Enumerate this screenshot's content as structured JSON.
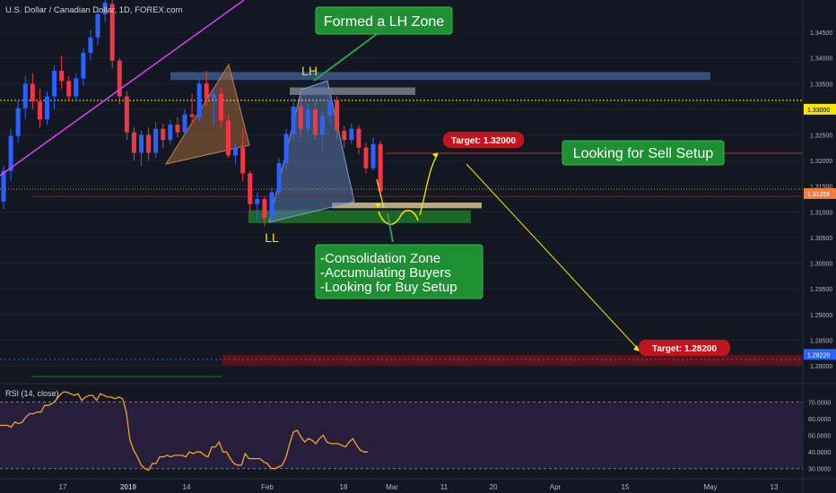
{
  "header": {
    "symbol_title": "U.S. Dollar / Canadian Dollar, 1D, FOREX.com"
  },
  "chart_data": {
    "type": "candlestick",
    "price_axis": {
      "range": [
        1.2765,
        1.3513
      ],
      "ticks": [
        "1.34500",
        "1.34000",
        "1.33500",
        "1.33000",
        "1.32500",
        "1.32000",
        "1.31500",
        "1.31000",
        "1.30500",
        "1.30000",
        "1.29500",
        "1.29000",
        "1.28500",
        "1.28000"
      ]
    },
    "price_labels": [
      {
        "id": "yellow-dotted-level",
        "value": 1.33,
        "text": "1.33000",
        "color": "#f7e600",
        "text_color": "#000000"
      },
      {
        "id": "last-price",
        "value": 1.31356,
        "text": "1.31356",
        "color": "#f57c3d",
        "text_color": "#ffffff"
      },
      {
        "id": "blue-dotted-level",
        "value": 1.2822,
        "text": "1.28220",
        "color": "#2962ff",
        "text_color": "#ffffff"
      }
    ],
    "time_axis": {
      "ticks": [
        "17",
        "2019",
        "14",
        "Feb",
        "18",
        "Mar",
        "11",
        "20",
        "Apr",
        "15",
        "May",
        "13"
      ],
      "bold_ticks": [
        "2019"
      ]
    },
    "colors": {
      "up": "#2962ff",
      "down": "#f23645",
      "background": "#131722",
      "grid": "#1e2230"
    },
    "candles": [
      {
        "o": 1.312,
        "h": 1.319,
        "l": 1.3105,
        "c": 1.318
      },
      {
        "o": 1.318,
        "h": 1.3262,
        "l": 1.316,
        "c": 1.3248
      },
      {
        "o": 1.3248,
        "h": 1.3318,
        "l": 1.3235,
        "c": 1.3302
      },
      {
        "o": 1.3302,
        "h": 1.3365,
        "l": 1.328,
        "c": 1.335
      },
      {
        "o": 1.335,
        "h": 1.337,
        "l": 1.33,
        "c": 1.3315
      },
      {
        "o": 1.3315,
        "h": 1.334,
        "l": 1.3265,
        "c": 1.328
      },
      {
        "o": 1.328,
        "h": 1.3335,
        "l": 1.327,
        "c": 1.3325
      },
      {
        "o": 1.3325,
        "h": 1.3385,
        "l": 1.33,
        "c": 1.3375
      },
      {
        "o": 1.3375,
        "h": 1.3405,
        "l": 1.334,
        "c": 1.3355
      },
      {
        "o": 1.3355,
        "h": 1.3365,
        "l": 1.3318,
        "c": 1.3325
      },
      {
        "o": 1.3325,
        "h": 1.337,
        "l": 1.3315,
        "c": 1.336
      },
      {
        "o": 1.336,
        "h": 1.342,
        "l": 1.3345,
        "c": 1.341
      },
      {
        "o": 1.341,
        "h": 1.3455,
        "l": 1.3395,
        "c": 1.344
      },
      {
        "o": 1.344,
        "h": 1.35,
        "l": 1.3425,
        "c": 1.3485
      },
      {
        "o": 1.3485,
        "h": 1.352,
        "l": 1.347,
        "c": 1.3508
      },
      {
        "o": 1.3505,
        "h": 1.352,
        "l": 1.338,
        "c": 1.3395
      },
      {
        "o": 1.3395,
        "h": 1.34,
        "l": 1.331,
        "c": 1.3325
      },
      {
        "o": 1.3325,
        "h": 1.3335,
        "l": 1.324,
        "c": 1.3255
      },
      {
        "o": 1.3255,
        "h": 1.3265,
        "l": 1.32,
        "c": 1.3215
      },
      {
        "o": 1.3215,
        "h": 1.3258,
        "l": 1.319,
        "c": 1.325
      },
      {
        "o": 1.325,
        "h": 1.3265,
        "l": 1.32,
        "c": 1.3215
      },
      {
        "o": 1.3215,
        "h": 1.3275,
        "l": 1.3205,
        "c": 1.3262
      },
      {
        "o": 1.3262,
        "h": 1.3272,
        "l": 1.3225,
        "c": 1.324
      },
      {
        "o": 1.324,
        "h": 1.328,
        "l": 1.3232,
        "c": 1.327
      },
      {
        "o": 1.327,
        "h": 1.3285,
        "l": 1.3245,
        "c": 1.3255
      },
      {
        "o": 1.3255,
        "h": 1.33,
        "l": 1.325,
        "c": 1.329
      },
      {
        "o": 1.329,
        "h": 1.333,
        "l": 1.327,
        "c": 1.3285
      },
      {
        "o": 1.3285,
        "h": 1.336,
        "l": 1.3275,
        "c": 1.335
      },
      {
        "o": 1.335,
        "h": 1.3375,
        "l": 1.3305,
        "c": 1.332
      },
      {
        "o": 1.332,
        "h": 1.334,
        "l": 1.327,
        "c": 1.333
      },
      {
        "o": 1.333,
        "h": 1.3342,
        "l": 1.3265,
        "c": 1.3278
      },
      {
        "o": 1.3278,
        "h": 1.329,
        "l": 1.3205,
        "c": 1.321
      },
      {
        "o": 1.321,
        "h": 1.3232,
        "l": 1.3192,
        "c": 1.3225
      },
      {
        "o": 1.3225,
        "h": 1.3262,
        "l": 1.316,
        "c": 1.3175
      },
      {
        "o": 1.3175,
        "h": 1.318,
        "l": 1.3102,
        "c": 1.3115
      },
      {
        "o": 1.3115,
        "h": 1.3138,
        "l": 1.3082,
        "c": 1.3125
      },
      {
        "o": 1.3125,
        "h": 1.313,
        "l": 1.3072,
        "c": 1.3088
      },
      {
        "o": 1.3088,
        "h": 1.3148,
        "l": 1.3082,
        "c": 1.3138
      },
      {
        "o": 1.3138,
        "h": 1.3205,
        "l": 1.313,
        "c": 1.3195
      },
      {
        "o": 1.3195,
        "h": 1.3262,
        "l": 1.318,
        "c": 1.3252
      },
      {
        "o": 1.3252,
        "h": 1.3322,
        "l": 1.324,
        "c": 1.3305
      },
      {
        "o": 1.3305,
        "h": 1.3325,
        "l": 1.3245,
        "c": 1.3262
      },
      {
        "o": 1.3262,
        "h": 1.3312,
        "l": 1.325,
        "c": 1.33
      },
      {
        "o": 1.33,
        "h": 1.3315,
        "l": 1.324,
        "c": 1.325
      },
      {
        "o": 1.325,
        "h": 1.3298,
        "l": 1.322,
        "c": 1.3288
      },
      {
        "o": 1.3288,
        "h": 1.3338,
        "l": 1.327,
        "c": 1.3318
      },
      {
        "o": 1.3318,
        "h": 1.3325,
        "l": 1.3242,
        "c": 1.3258
      },
      {
        "o": 1.3258,
        "h": 1.3268,
        "l": 1.3225,
        "c": 1.324
      },
      {
        "o": 1.324,
        "h": 1.3272,
        "l": 1.3232,
        "c": 1.3262
      },
      {
        "o": 1.3262,
        "h": 1.327,
        "l": 1.3212,
        "c": 1.3225
      },
      {
        "o": 1.3225,
        "h": 1.3235,
        "l": 1.3175,
        "c": 1.3185
      },
      {
        "o": 1.3185,
        "h": 1.3245,
        "l": 1.318,
        "c": 1.3232
      },
      {
        "o": 1.3232,
        "h": 1.3238,
        "l": 1.313,
        "c": 1.314
      }
    ],
    "zones": [
      {
        "id": "lh-zone-long",
        "label": "",
        "p_top": 1.33725,
        "p_bottom": 1.3357,
        "color": "#3d5a8a",
        "opacity": 0.85
      },
      {
        "id": "lh-zone",
        "label": "",
        "p_top": 1.33425,
        "p_bottom": 1.3328,
        "color": "#777a80",
        "opacity": 0.9
      },
      {
        "id": "consolidation-zone-light",
        "label": "",
        "p_top": 1.3118,
        "p_bottom": 1.3107,
        "color": "#c9b98a",
        "opacity": 0.9
      },
      {
        "id": "consolidation-zone",
        "label": "",
        "p_top": 1.3103,
        "p_bottom": 1.3078,
        "color": "#1d6b27",
        "opacity": 0.95
      },
      {
        "id": "lower-red-zone",
        "label": "",
        "p_top": 1.2821,
        "p_bottom": 1.2801,
        "color": "#6b0f17",
        "opacity": 0.9
      }
    ],
    "annotations": {
      "formed_lh": "Formed a LH Zone",
      "lh_label": "LH",
      "ll_label": "LL",
      "sell_setup": "Looking for Sell Setup",
      "target_upper": "Target: 1.32000",
      "target_lower": "Target: 1.28200",
      "consolidation_lines": [
        "-Consolidation Zone",
        "-Accumulating Buyers",
        "-Looking for Buy Setup"
      ]
    }
  },
  "rsi": {
    "title": "RSI (14, close)",
    "range": [
      25,
      80
    ],
    "ticks": [
      "70.0000",
      "60.0000",
      "50.0000",
      "40.0000",
      "30.0000"
    ],
    "color": "#f6a02d",
    "band_color": "#2a1f3f",
    "values": [
      56,
      56,
      56,
      55,
      58,
      57,
      58,
      61,
      63,
      63,
      64,
      64,
      68,
      68,
      69,
      71,
      74,
      76,
      76,
      75,
      74,
      75,
      71,
      73,
      74,
      74,
      71,
      75,
      74,
      73,
      73,
      72,
      73,
      72,
      64,
      47,
      41,
      37,
      32,
      30,
      29,
      33,
      33,
      37,
      37,
      38,
      37,
      38,
      38,
      38,
      37,
      40,
      39,
      40,
      40,
      38,
      37,
      43,
      43,
      46,
      40,
      40,
      36,
      33,
      32,
      32,
      39,
      36,
      36,
      36,
      36,
      34,
      33,
      30,
      30,
      31,
      32,
      37,
      45,
      52,
      53,
      49,
      46,
      48,
      47,
      45,
      48,
      50,
      46,
      45,
      45,
      45,
      44,
      43,
      46,
      48,
      44,
      41,
      40,
      40
    ]
  }
}
